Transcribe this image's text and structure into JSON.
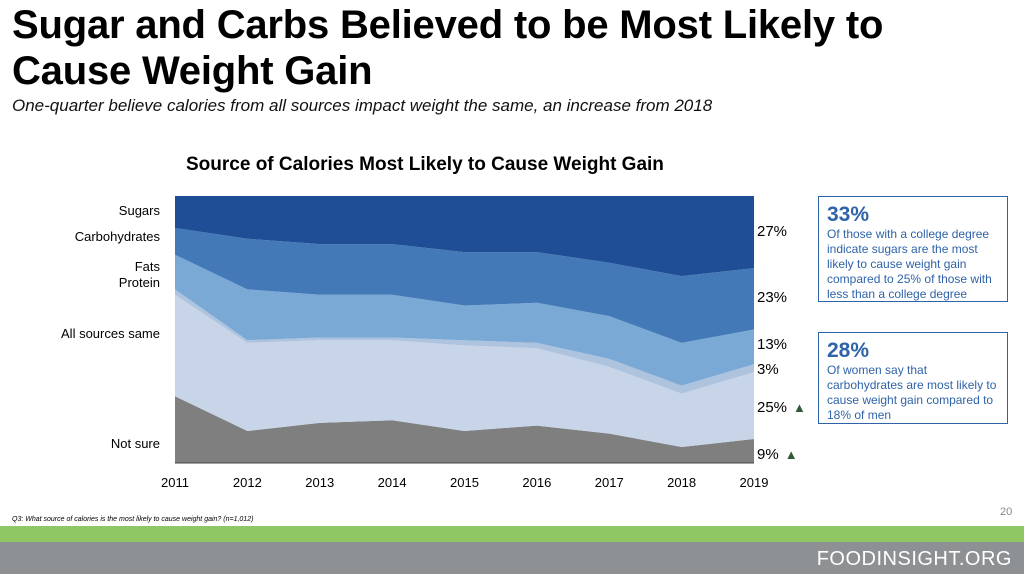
{
  "slide": {
    "title": "Sugar and Carbs Believed to be Most Likely to Cause Weight Gain",
    "subtitle": "One-quarter believe calories from all sources impact weight the same, an increase from 2018",
    "footnote": "Q3: What source of calories is the most likely to cause weight gain? (n=1,012)",
    "page_number": "20",
    "brand": "FOODINSIGHT.ORG"
  },
  "callouts": [
    {
      "percent": "33%",
      "text": "Of those with a college degree indicate sugars are the most likely to cause weight gain compared to 25% of those with less than a college degree"
    },
    {
      "percent": "28%",
      "text": "Of women say that carbohydrates are most likely to cause weight gain compared to 18% of men"
    }
  ],
  "chart_data": {
    "type": "area",
    "stacked": true,
    "title": "Source of Calories Most Likely to Cause Weight Gain",
    "x": [
      "2011",
      "2012",
      "2013",
      "2014",
      "2015",
      "2016",
      "2017",
      "2018",
      "2019"
    ],
    "series": [
      {
        "name": "Not sure",
        "color": "#7f7f7f",
        "values": [
          25,
          12,
          15,
          16,
          12,
          14,
          11,
          6,
          9
        ]
      },
      {
        "name": "All sources same",
        "color": "#c8d4e8",
        "values": [
          38,
          33,
          31,
          30,
          32,
          29,
          25,
          20,
          25
        ]
      },
      {
        "name": "Protein",
        "color": "#adc3de",
        "values": [
          2,
          1,
          1,
          1,
          2,
          2,
          3,
          3,
          3
        ]
      },
      {
        "name": "Fats",
        "color": "#7aa9d5",
        "values": [
          13,
          19,
          16,
          16,
          13,
          15,
          16,
          16,
          13
        ]
      },
      {
        "name": "Carbohydrates",
        "color": "#4479b7",
        "values": [
          10,
          19,
          19,
          19,
          20,
          19,
          20,
          25,
          23
        ]
      },
      {
        "name": "Sugars",
        "color": "#1f4e96",
        "values": [
          12,
          16,
          18,
          18,
          21,
          21,
          25,
          30,
          27
        ]
      }
    ],
    "end_labels": [
      "9%",
      "25%",
      "3%",
      "13%",
      "23%",
      "27%"
    ],
    "trend_up": [
      true,
      true,
      false,
      false,
      false,
      false
    ],
    "ylim": [
      0,
      100
    ],
    "legend": "left"
  }
}
